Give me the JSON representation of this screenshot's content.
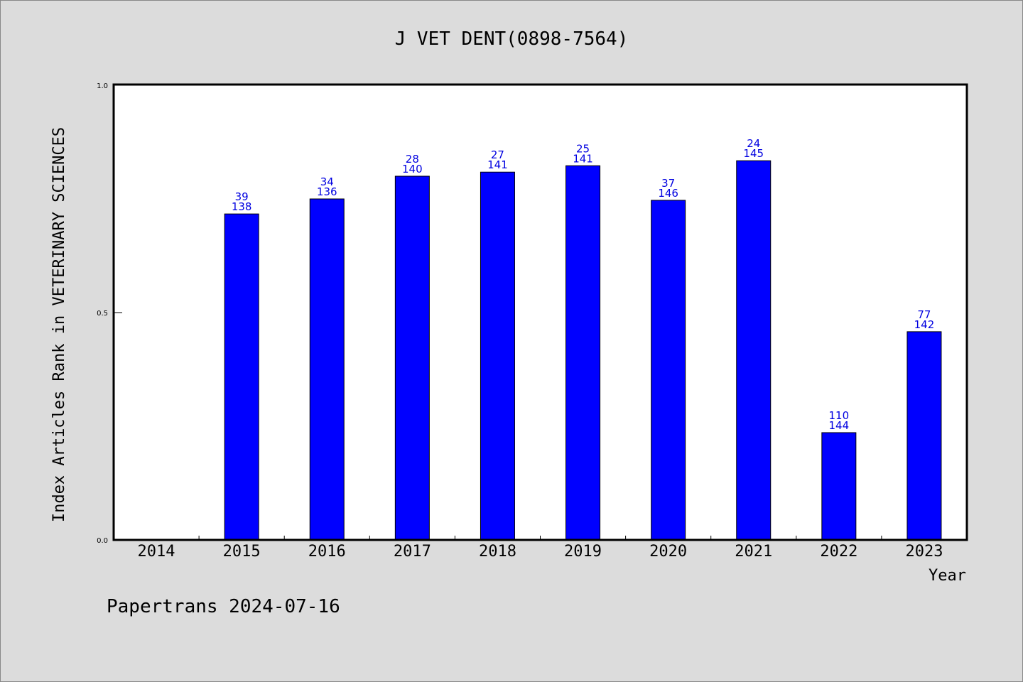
{
  "chart_data": {
    "type": "bar",
    "title": "J VET DENT(0898-7564)",
    "xlabel": "Year",
    "ylabel": "Index Articles Rank in VETERINARY SCIENCES",
    "ylim": [
      0.0,
      1.0
    ],
    "yticks": [
      "0.0",
      "0.5",
      "1.0"
    ],
    "grid": false,
    "categories": [
      "2014",
      "2015",
      "2016",
      "2017",
      "2018",
      "2019",
      "2020",
      "2021",
      "2022",
      "2023"
    ],
    "values": [
      null,
      0.717,
      0.75,
      0.8,
      0.809,
      0.823,
      0.747,
      0.834,
      0.236,
      0.458
    ],
    "rank": [
      "",
      "39",
      "34",
      "28",
      "27",
      "25",
      "37",
      "24",
      "110",
      "77"
    ],
    "total": [
      "",
      "138",
      "136",
      "140",
      "141",
      "141",
      "146",
      "145",
      "144",
      "142"
    ],
    "bar_color": "#0000ff",
    "label_color": "#0000e0"
  },
  "footer": "Papertrans 2024-07-16"
}
